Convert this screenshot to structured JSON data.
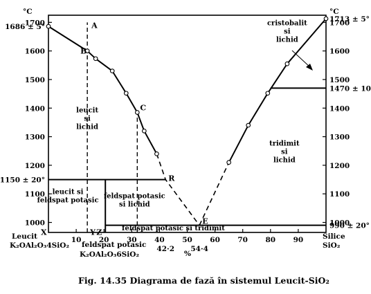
{
  "caption": "Fig. 14.35 Diagrama de fază în sistemul Leucit-SiO₂",
  "axes": {
    "y_unit_left": "°C",
    "y_unit_right": "°C",
    "x_unit": "%",
    "y_ticks": [
      "1000",
      "1100",
      "1200",
      "1300",
      "1400",
      "1500",
      "1600",
      "1700"
    ],
    "y_tick_values": [
      1000,
      1100,
      1200,
      1300,
      1400,
      1500,
      1600,
      1700
    ],
    "x_ticks": [
      "10",
      "20",
      "30",
      "40",
      "50",
      "60",
      "70",
      "80",
      "90"
    ],
    "x_tick_values": [
      10,
      20,
      30,
      40,
      50,
      60,
      70,
      80,
      90
    ],
    "left_endpoint_label": "Leucit",
    "left_endpoint_formula": "K₂OAl₂O₃4SiO₂",
    "right_endpoint_label": "Silice",
    "right_endpoint_formula": "SiO₂",
    "mid_component_label": "feldspat potasic",
    "mid_component_formula": "K₂OAl₂O₃6SiO₂",
    "special_x_labels": [
      {
        "text": "42·2",
        "x": 42.2
      },
      {
        "text": "54·4",
        "x": 54.4
      }
    ]
  },
  "temperature_labels": [
    {
      "text": "1686 ± 5°",
      "side": "left",
      "value": 1686
    },
    {
      "text": "1150 ± 20°",
      "side": "left",
      "value": 1150
    },
    {
      "text": "1713 ± 5°",
      "side": "right",
      "value": 1713
    },
    {
      "text": "1470 ± 10°",
      "side": "right",
      "value": 1470
    },
    {
      "text": "990 ± 20°",
      "side": "right",
      "value": 990
    }
  ],
  "points": [
    {
      "name": "A",
      "x": 14,
      "y": 1690
    },
    {
      "name": "B",
      "x": 14,
      "y": 1600
    },
    {
      "name": "C",
      "x": 32,
      "y": 1385
    },
    {
      "name": "R",
      "x": 42.2,
      "y": 1150
    },
    {
      "name": "E",
      "x": 54.4,
      "y": 990
    },
    {
      "name": "X",
      "x": 0,
      "y": 990
    },
    {
      "name": "Y",
      "x": 14,
      "y": 990
    },
    {
      "name": "Z",
      "x": 20.5,
      "y": 990
    }
  ],
  "regions": [
    {
      "lines": [
        "leucit",
        "si",
        "lichid"
      ],
      "x": 14,
      "y": 1365
    },
    {
      "lines": [
        "leucit si",
        "feldspat potasic"
      ],
      "x": 7,
      "y": 1095
    },
    {
      "lines": [
        "feldspat potasic",
        "si lichid"
      ],
      "x": 31,
      "y": 1080
    },
    {
      "lines": [
        "feldspat potasic si tridimit"
      ],
      "x": 45,
      "y": 982
    },
    {
      "lines": [
        "tridimit",
        "si",
        "lichid"
      ],
      "x": 85,
      "y": 1250
    },
    {
      "lines": [
        "cristobalit",
        "si",
        "lichid"
      ],
      "x": 86,
      "y": 1670
    }
  ],
  "chart_data": {
    "type": "line",
    "title": "",
    "xlabel": "%",
    "ylabel": "°C",
    "xlim": [
      0,
      100
    ],
    "ylim": [
      965,
      1725
    ],
    "series": [
      {
        "values": [
          [
            0,
            1686
          ],
          [
            14,
            1600
          ],
          [
            17,
            1573
          ],
          [
            23,
            1530
          ],
          [
            28,
            1452
          ],
          [
            32,
            1385
          ],
          [
            34.5,
            1320
          ],
          [
            39,
            1240
          ]
        ]
      },
      {
        "values": [
          [
            39,
            1240
          ],
          [
            42.2,
            1150
          ],
          [
            54.4,
            990
          ]
        ]
      },
      {
        "values": [
          [
            54.4,
            990
          ],
          [
            65,
            1210
          ]
        ]
      },
      {
        "values": [
          [
            65,
            1210
          ],
          [
            72,
            1340
          ],
          [
            79,
            1452
          ],
          [
            86,
            1555
          ],
          [
            100,
            1713
          ]
        ]
      }
    ],
    "horizontal_lines": [
      {
        "y": 1150,
        "x_from": 0,
        "x_to": 42.2
      },
      {
        "y": 1470,
        "x_from": 80,
        "x_to": 100
      },
      {
        "y": 990,
        "x_from": 20.5,
        "x_to": 100
      }
    ],
    "vertical_lines": [
      {
        "x": 20.5,
        "y_from": 965,
        "y_to": 1150,
        "style": "solid"
      },
      {
        "x": 14,
        "y_from": 965,
        "y_to": 1700,
        "style": "dashed"
      },
      {
        "x": 32,
        "y_from": 965,
        "y_to": 1385,
        "style": "dashed"
      }
    ]
  }
}
